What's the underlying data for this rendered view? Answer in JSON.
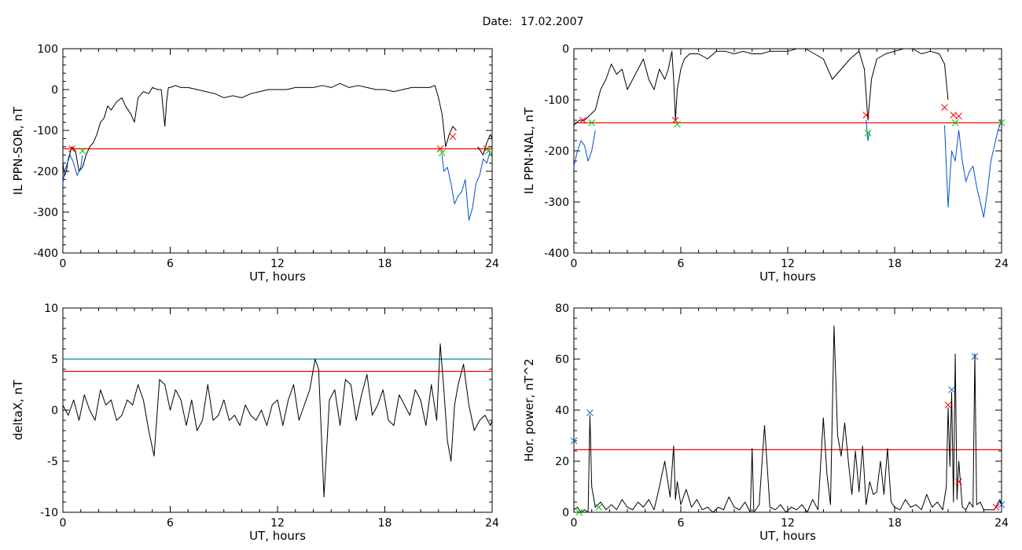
{
  "date_label": "Date:",
  "date_value": "17.02.2007",
  "colors": {
    "trace": "#000000",
    "bright": "#0050d0",
    "threshold": "#ff0000",
    "threshold2": "#008b8b",
    "marker_start": "#ff0000",
    "marker_end": "#00c000",
    "marker_peak": "#1e64d2"
  },
  "chart_data": [
    {
      "type": "line",
      "id": "sor",
      "xlabel": "UT, hours",
      "ylabel": "IL PPN-SOR, nT",
      "xlim": [
        0,
        24
      ],
      "ylim": [
        -400,
        100
      ],
      "xticks": [
        0,
        6,
        12,
        18,
        24
      ],
      "yticks": [
        100,
        0,
        -100,
        -200,
        -300,
        -400
      ],
      "threshold": -145,
      "series": [
        {
          "color_key": "trace",
          "x": [
            0,
            0.1,
            0.2,
            0.3,
            0.5,
            0.7,
            0.9,
            1.1,
            1.3,
            1.5,
            1.7,
            1.9,
            2.1,
            2.3,
            2.5,
            2.7,
            3.0,
            3.3,
            3.5,
            3.8,
            4.0,
            4.2,
            4.5,
            4.8,
            5.0,
            5.3,
            5.5,
            5.7,
            5.8,
            5.9,
            6.0,
            6.3,
            6.6,
            7.0,
            7.5,
            8.0,
            8.5,
            9.0,
            9.5,
            10.0,
            10.5,
            11.0,
            11.5,
            12.0,
            12.5,
            13.0,
            13.5,
            14.0,
            14.5,
            15.0,
            15.5,
            16.0,
            16.5,
            17.0,
            17.5,
            18.0,
            18.5,
            19.0,
            19.5,
            20.0,
            20.5,
            20.8,
            21.0,
            21.1,
            21.2,
            21.3,
            21.4,
            21.6,
            21.8,
            22.0
          ],
          "y": [
            -180,
            -210,
            -200,
            -170,
            -140,
            -150,
            -200,
            -190,
            -160,
            -140,
            -130,
            -110,
            -80,
            -70,
            -40,
            -50,
            -30,
            -20,
            -40,
            -60,
            -80,
            -20,
            -5,
            -10,
            5,
            0,
            0,
            -90,
            -30,
            5,
            5,
            10,
            5,
            5,
            0,
            -5,
            -10,
            -20,
            -15,
            -20,
            -10,
            -5,
            0,
            0,
            0,
            5,
            5,
            5,
            10,
            5,
            15,
            5,
            10,
            5,
            0,
            0,
            -5,
            0,
            5,
            5,
            5,
            10,
            -20,
            -40,
            -60,
            -100,
            -140,
            -110,
            -90,
            -100
          ]
        },
        {
          "color_key": "bright",
          "x": [
            0,
            0.1,
            0.25,
            0.4,
            0.6,
            0.8,
            1.0,
            1.1
          ],
          "y": [
            -230,
            -200,
            -180,
            -160,
            -180,
            -210,
            -190,
            -160
          ]
        },
        {
          "color_key": "trace",
          "x": [
            23.2,
            23.5,
            23.7,
            23.9,
            24.0
          ],
          "y": [
            -140,
            -160,
            -130,
            -110,
            -120
          ]
        },
        {
          "color_key": "bright",
          "x": [
            21.2,
            21.3,
            21.5,
            21.7,
            21.9,
            22.1,
            22.3,
            22.5,
            22.7,
            22.9,
            23.1,
            23.3,
            23.5,
            23.7,
            23.9
          ],
          "y": [
            -160,
            -200,
            -190,
            -230,
            -280,
            -260,
            -250,
            -220,
            -320,
            -290,
            -230,
            -210,
            -170,
            -180,
            -150
          ]
        }
      ],
      "markers": [
        {
          "x": 0.5,
          "y": -145,
          "color_key": "marker_start"
        },
        {
          "x": 1.1,
          "y": -150,
          "color_key": "marker_end"
        },
        {
          "x": 21.1,
          "y": -145,
          "color_key": "marker_start"
        },
        {
          "x": 21.2,
          "y": -155,
          "color_key": "marker_end"
        },
        {
          "x": 21.8,
          "y": -115,
          "color_key": "marker_start"
        },
        {
          "x": 23.7,
          "y": -145,
          "color_key": "marker_start"
        },
        {
          "x": 23.8,
          "y": -150,
          "color_key": "marker_end"
        }
      ]
    },
    {
      "type": "line",
      "id": "nal",
      "xlabel": "UT, hours",
      "ylabel": "IL PPN-NAL, nT",
      "xlim": [
        0,
        24
      ],
      "ylim": [
        -400,
        0
      ],
      "xticks": [
        0,
        6,
        12,
        18,
        24
      ],
      "yticks": [
        0,
        -100,
        -200,
        -300,
        -400
      ],
      "threshold": -145,
      "series": [
        {
          "color_key": "trace",
          "x": [
            0,
            0.3,
            0.6,
            0.9,
            1.2,
            1.5,
            1.8,
            2.1,
            2.4,
            2.7,
            3.0,
            3.3,
            3.6,
            3.9,
            4.2,
            4.5,
            4.8,
            5.1,
            5.3,
            5.5,
            5.6,
            5.7,
            5.8,
            6.0,
            6.2,
            6.5,
            7.0,
            7.5,
            8.0,
            8.5,
            9.0,
            9.5,
            10.0,
            10.5,
            11.0,
            11.5,
            12.0,
            12.5,
            13.0,
            13.5,
            14.0,
            14.5,
            15.0,
            15.5,
            16.0,
            16.3,
            16.5,
            16.7,
            17.0,
            17.5,
            18.0,
            18.5,
            19.0,
            19.5,
            20.0,
            20.5,
            20.8,
            21.0
          ],
          "y": [
            -150,
            -140,
            -140,
            -130,
            -120,
            -80,
            -60,
            -30,
            -50,
            -40,
            -80,
            -60,
            -40,
            -20,
            -60,
            -80,
            -40,
            -60,
            -40,
            -5,
            -60,
            -140,
            -80,
            -40,
            -20,
            -10,
            -10,
            -20,
            -5,
            -5,
            -10,
            -5,
            -10,
            -10,
            -5,
            -5,
            -5,
            0,
            0,
            -10,
            -20,
            -60,
            -40,
            -20,
            -5,
            -40,
            -140,
            -60,
            -20,
            -10,
            -5,
            0,
            0,
            -10,
            -5,
            -10,
            -30,
            -100
          ]
        },
        {
          "color_key": "bright",
          "x": [
            0,
            0.2,
            0.4,
            0.6,
            0.8,
            1.0,
            1.2
          ],
          "y": [
            -230,
            -200,
            -180,
            -190,
            -220,
            -200,
            -160
          ]
        },
        {
          "color_key": "bright",
          "x": [
            16.4,
            16.5,
            16.6
          ],
          "y": [
            -140,
            -180,
            -160
          ]
        },
        {
          "color_key": "bright",
          "x": [
            20.8,
            21.0,
            21.2,
            21.4,
            21.6,
            21.8,
            22.0,
            22.2,
            22.4,
            22.6,
            22.8,
            23.0,
            23.2,
            23.4,
            23.6,
            23.8,
            24.0
          ],
          "y": [
            -150,
            -310,
            -200,
            -220,
            -160,
            -220,
            -260,
            -240,
            -230,
            -270,
            -300,
            -330,
            -280,
            -220,
            -190,
            -160,
            -140
          ]
        }
      ],
      "markers": [
        {
          "x": 0.5,
          "y": -140,
          "color_key": "marker_start"
        },
        {
          "x": 1.0,
          "y": -145,
          "color_key": "marker_end"
        },
        {
          "x": 5.7,
          "y": -140,
          "color_key": "marker_start"
        },
        {
          "x": 5.8,
          "y": -148,
          "color_key": "marker_end"
        },
        {
          "x": 16.4,
          "y": -130,
          "color_key": "marker_start"
        },
        {
          "x": 16.5,
          "y": -165,
          "color_key": "marker_end"
        },
        {
          "x": 20.8,
          "y": -115,
          "color_key": "marker_start"
        },
        {
          "x": 21.3,
          "y": -130,
          "color_key": "marker_start"
        },
        {
          "x": 21.4,
          "y": -145,
          "color_key": "marker_end"
        },
        {
          "x": 21.6,
          "y": -132,
          "color_key": "marker_start"
        },
        {
          "x": 24.0,
          "y": -145,
          "color_key": "marker_end"
        }
      ]
    },
    {
      "type": "line",
      "id": "deltax",
      "xlabel": "UT, hours",
      "ylabel": "deltaX, nT",
      "xlim": [
        0,
        24
      ],
      "ylim": [
        -10,
        10
      ],
      "xticks": [
        0,
        6,
        12,
        18,
        24
      ],
      "yticks": [
        10,
        5,
        0,
        -5,
        -10
      ],
      "threshold": 3.8,
      "threshold2": 5.0,
      "series": [
        {
          "color_key": "trace",
          "x": [
            0,
            0.3,
            0.6,
            0.9,
            1.2,
            1.5,
            1.8,
            2.1,
            2.4,
            2.7,
            3.0,
            3.3,
            3.6,
            3.9,
            4.2,
            4.5,
            4.8,
            5.1,
            5.4,
            5.7,
            6.0,
            6.3,
            6.6,
            6.9,
            7.2,
            7.5,
            7.8,
            8.1,
            8.4,
            8.7,
            9.0,
            9.3,
            9.6,
            9.9,
            10.2,
            10.5,
            10.8,
            11.1,
            11.4,
            11.7,
            12.0,
            12.3,
            12.6,
            12.9,
            13.2,
            13.5,
            13.8,
            14.1,
            14.3,
            14.6,
            14.9,
            15.2,
            15.5,
            15.8,
            16.1,
            16.4,
            16.7,
            17.0,
            17.3,
            17.6,
            17.9,
            18.2,
            18.5,
            18.8,
            19.1,
            19.4,
            19.7,
            20.0,
            20.3,
            20.6,
            20.9,
            21.1,
            21.3,
            21.5,
            21.7,
            21.9,
            22.1,
            22.4,
            22.7,
            23.0,
            23.3,
            23.6,
            23.9,
            24.0
          ],
          "y": [
            0.5,
            -0.5,
            1.0,
            -1.0,
            1.5,
            0.0,
            -1.0,
            2.0,
            0.5,
            1.0,
            -1.0,
            -0.5,
            1.0,
            0.5,
            2.5,
            1.0,
            -2.0,
            -4.5,
            3.0,
            2.5,
            0.0,
            2.0,
            1.0,
            -1.5,
            1.0,
            -2.0,
            -1.0,
            2.5,
            -1.0,
            -0.5,
            1.0,
            -1.0,
            -0.5,
            -1.5,
            0.5,
            -0.5,
            -1.0,
            0.0,
            -1.5,
            0.5,
            1.0,
            -1.5,
            1.0,
            2.5,
            -1.0,
            0.5,
            2.0,
            5.0,
            4.0,
            -8.5,
            1.0,
            2.0,
            -1.5,
            3.0,
            2.5,
            -1.0,
            1.5,
            3.5,
            -0.5,
            0.5,
            2.0,
            -1.0,
            -1.5,
            1.5,
            0.5,
            -0.5,
            2.0,
            1.0,
            -1.5,
            2.5,
            -1.0,
            6.5,
            2.0,
            -3.0,
            -5.0,
            0.5,
            2.5,
            4.5,
            0.5,
            -2.0,
            -1.0,
            -0.5,
            -1.5,
            -1.0
          ]
        }
      ],
      "markers": []
    },
    {
      "type": "line",
      "id": "power",
      "xlabel": "UT, hours",
      "ylabel": "Hor. power, nT^2",
      "xlim": [
        0,
        24
      ],
      "ylim": [
        0,
        80
      ],
      "xticks": [
        0,
        6,
        12,
        18,
        24
      ],
      "yticks": [
        80,
        60,
        40,
        20,
        0
      ],
      "threshold": 24.5,
      "series": [
        {
          "color_key": "trace",
          "x": [
            0,
            0.2,
            0.4,
            0.6,
            0.8,
            0.9,
            1.0,
            1.2,
            1.5,
            1.8,
            2.1,
            2.4,
            2.7,
            3.0,
            3.3,
            3.6,
            3.9,
            4.2,
            4.5,
            4.8,
            5.1,
            5.4,
            5.6,
            5.7,
            5.8,
            6.0,
            6.3,
            6.6,
            6.9,
            7.2,
            7.5,
            7.8,
            8.1,
            8.4,
            8.7,
            9.0,
            9.3,
            9.6,
            9.9,
            10.0,
            10.1,
            10.4,
            10.7,
            11.0,
            11.3,
            11.6,
            11.9,
            12.2,
            12.5,
            12.8,
            13.1,
            13.4,
            13.7,
            14.0,
            14.2,
            14.4,
            14.6,
            14.8,
            15.0,
            15.2,
            15.4,
            15.6,
            15.8,
            16.0,
            16.2,
            16.4,
            16.6,
            16.8,
            17.0,
            17.2,
            17.4,
            17.6,
            17.8,
            18.0,
            18.3,
            18.6,
            18.9,
            19.2,
            19.5,
            19.8,
            20.1,
            20.4,
            20.7,
            20.9,
            21.0,
            21.1,
            21.2,
            21.3,
            21.4,
            21.5,
            21.6,
            21.8,
            22.0,
            22.2,
            22.4,
            22.5,
            22.6,
            22.8,
            23.0,
            23.3,
            23.6,
            23.9,
            24.0
          ],
          "y": [
            1,
            2,
            0,
            1,
            0,
            38,
            10,
            2,
            4,
            1,
            3,
            1,
            5,
            2,
            1,
            4,
            2,
            5,
            1,
            10,
            20,
            6,
            26,
            5,
            12,
            3,
            9,
            2,
            5,
            1,
            2,
            0,
            2,
            1,
            6,
            2,
            1,
            4,
            0,
            25,
            0,
            3,
            34,
            2,
            1,
            3,
            0,
            2,
            1,
            3,
            0,
            5,
            1,
            37,
            15,
            3,
            73,
            30,
            22,
            35,
            20,
            7,
            24,
            8,
            26,
            3,
            12,
            7,
            8,
            20,
            7,
            25,
            4,
            2,
            1,
            5,
            2,
            3,
            1,
            7,
            2,
            4,
            1,
            10,
            41,
            18,
            47,
            4,
            62,
            5,
            20,
            2,
            1,
            4,
            2,
            62,
            3,
            4,
            1,
            1,
            1,
            5,
            3
          ]
        }
      ],
      "markers": [
        {
          "x": 0.0,
          "y": 28,
          "color_key": "marker_peak"
        },
        {
          "x": 0.9,
          "y": 39,
          "color_key": "marker_peak"
        },
        {
          "x": 0.3,
          "y": 0,
          "color_key": "marker_end"
        },
        {
          "x": 1.4,
          "y": 2,
          "color_key": "marker_end"
        },
        {
          "x": 21.0,
          "y": 42,
          "color_key": "marker_start"
        },
        {
          "x": 21.2,
          "y": 48,
          "color_key": "marker_peak"
        },
        {
          "x": 21.6,
          "y": 12,
          "color_key": "marker_start"
        },
        {
          "x": 22.5,
          "y": 61,
          "color_key": "marker_peak"
        },
        {
          "x": 23.7,
          "y": 2,
          "color_key": "marker_start"
        },
        {
          "x": 24.0,
          "y": 3,
          "color_key": "marker_peak"
        }
      ]
    }
  ]
}
